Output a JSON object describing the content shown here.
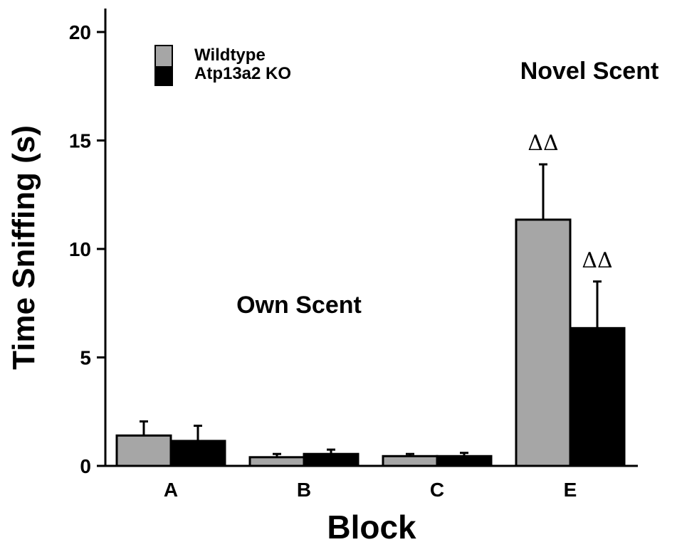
{
  "chart_data": {
    "type": "bar",
    "xlabel": "Block",
    "ylabel": "Time Sniffing (s)",
    "ylim": [
      0,
      20
    ],
    "yticks": [
      0,
      5,
      10,
      15,
      20
    ],
    "categories": [
      "A",
      "B",
      "C",
      "E"
    ],
    "series": [
      {
        "name": "Wildtype",
        "color": "#a6a6a6",
        "values": [
          1.4,
          0.4,
          0.45,
          11.35
        ],
        "errors": [
          0.65,
          0.15,
          0.1,
          2.55
        ]
      },
      {
        "name": "Atp13a2 KO",
        "color": "#000000",
        "values": [
          1.15,
          0.55,
          0.45,
          6.35
        ],
        "errors": [
          0.7,
          0.2,
          0.15,
          2.15
        ]
      }
    ],
    "annotations": {
      "own_scent": "Own Scent",
      "novel_scent": "Novel Scent"
    },
    "significance": [
      {
        "category": "E",
        "series": "Wildtype",
        "label": "ΔΔ"
      },
      {
        "category": "E",
        "series": "Atp13a2 KO",
        "label": "ΔΔ"
      }
    ],
    "legend_position": "top-left",
    "grid": false
  }
}
